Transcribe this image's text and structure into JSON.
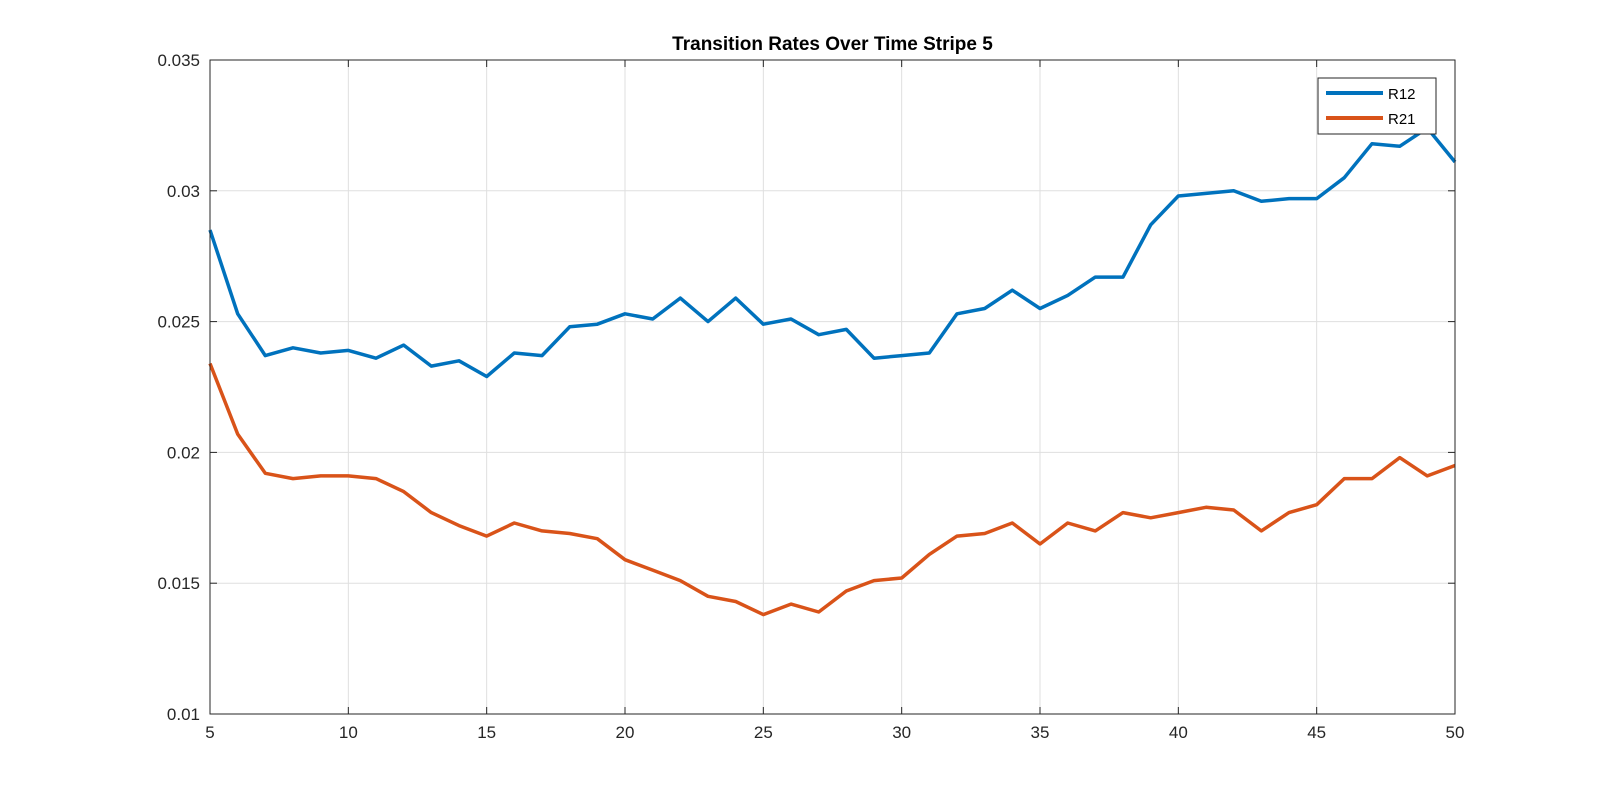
{
  "chart_data": {
    "type": "line",
    "title": "Transition Rates Over Time Stripe 5",
    "xlabel": "",
    "ylabel": "",
    "xlim": [
      5,
      50
    ],
    "ylim": [
      0.01,
      0.035
    ],
    "xticks": [
      5,
      10,
      15,
      20,
      25,
      30,
      35,
      40,
      45,
      50
    ],
    "yticks": [
      0.01,
      0.015,
      0.02,
      0.025,
      0.03,
      0.035
    ],
    "xtick_labels": [
      "5",
      "10",
      "15",
      "20",
      "25",
      "30",
      "35",
      "40",
      "45",
      "50"
    ],
    "ytick_labels": [
      "0.01",
      "0.015",
      "0.02",
      "0.025",
      "0.03",
      "0.035"
    ],
    "grid": true,
    "legend_position": "top-right",
    "x": [
      5,
      6,
      7,
      8,
      9,
      10,
      11,
      12,
      13,
      14,
      15,
      16,
      17,
      18,
      19,
      20,
      21,
      22,
      23,
      24,
      25,
      26,
      27,
      28,
      29,
      30,
      31,
      32,
      33,
      34,
      35,
      36,
      37,
      38,
      39,
      40,
      41,
      42,
      43,
      44,
      45,
      46,
      47,
      48,
      49,
      50
    ],
    "series": [
      {
        "name": "R12",
        "color": "#0072BD",
        "values": [
          0.0285,
          0.0253,
          0.0237,
          0.024,
          0.0238,
          0.0239,
          0.0236,
          0.0241,
          0.0233,
          0.0235,
          0.0229,
          0.0238,
          0.0237,
          0.0248,
          0.0249,
          0.0253,
          0.0251,
          0.0259,
          0.025,
          0.0259,
          0.0249,
          0.0251,
          0.0245,
          0.0247,
          0.0236,
          0.0237,
          0.0238,
          0.0253,
          0.0255,
          0.0262,
          0.0255,
          0.026,
          0.0267,
          0.0267,
          0.0287,
          0.0298,
          0.0299,
          0.03,
          0.0296,
          0.0297,
          0.0297,
          0.0305,
          0.0318,
          0.0317,
          0.0324,
          0.0311
        ]
      },
      {
        "name": "R21",
        "color": "#D95319",
        "values": [
          0.0234,
          0.0207,
          0.0192,
          0.019,
          0.0191,
          0.0191,
          0.019,
          0.0185,
          0.0177,
          0.0172,
          0.0168,
          0.0173,
          0.017,
          0.0169,
          0.0167,
          0.0159,
          0.0155,
          0.0151,
          0.0145,
          0.0143,
          0.0138,
          0.0142,
          0.0139,
          0.0147,
          0.0151,
          0.0152,
          0.0161,
          0.0168,
          0.0169,
          0.0173,
          0.0165,
          0.0173,
          0.017,
          0.0177,
          0.0175,
          0.0177,
          0.0179,
          0.0178,
          0.017,
          0.0177,
          0.018,
          0.019,
          0.019,
          0.0198,
          0.0191,
          0.0195
        ]
      }
    ]
  }
}
